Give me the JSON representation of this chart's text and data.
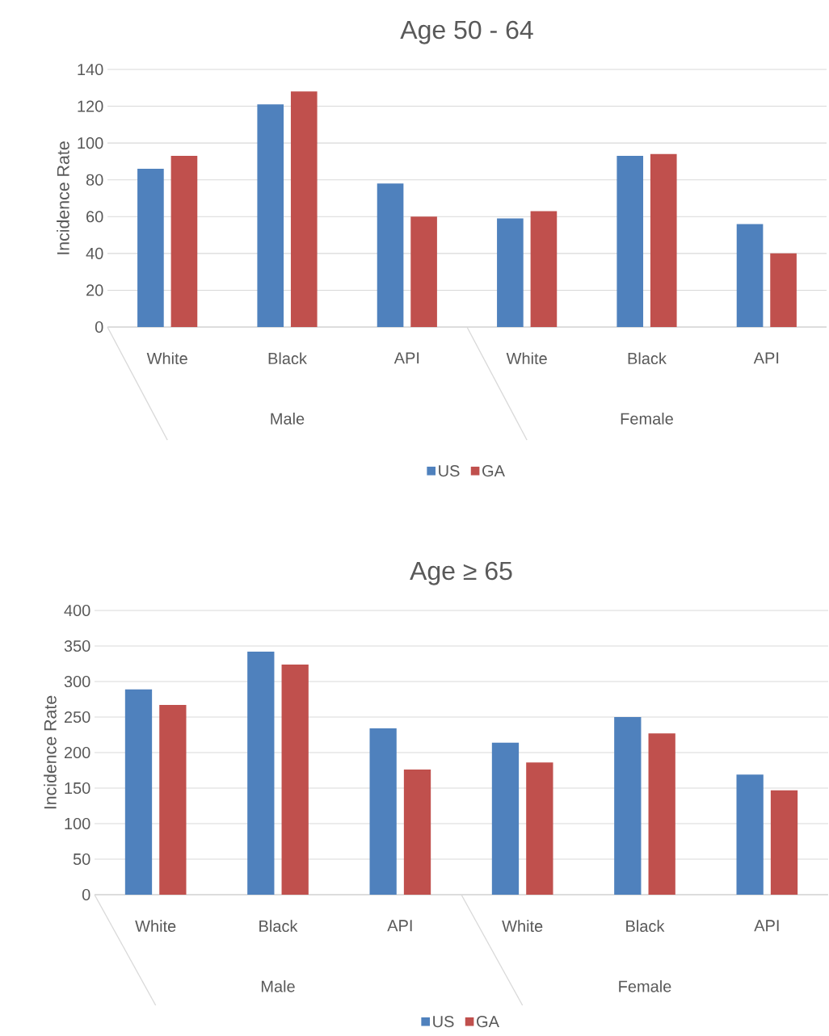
{
  "chart_data": [
    {
      "type": "bar",
      "title": "Age 50 - 64",
      "ylabel": "Incidence Rate",
      "categories": [
        "White",
        "Black",
        "API",
        "White",
        "Black",
        "API"
      ],
      "series": [
        {
          "name": "US",
          "color": "#4f81bd",
          "values": [
            86,
            121,
            78,
            59,
            93,
            56
          ]
        },
        {
          "name": "GA",
          "color": "#c0504d",
          "values": [
            93,
            128,
            60,
            63,
            94,
            40
          ]
        }
      ],
      "ylim": [
        0,
        140
      ],
      "yticks": [
        0,
        20,
        40,
        60,
        80,
        100,
        120,
        140
      ],
      "grid": "y",
      "legend": "bottom",
      "annotations": [
        "Male",
        "Female"
      ]
    },
    {
      "type": "bar",
      "title": "Age ≥ 65",
      "ylabel": "Incidence Rate",
      "categories": [
        "White",
        "Black",
        "API",
        "White",
        "Black",
        "API"
      ],
      "series": [
        {
          "name": "US",
          "color": "#4f81bd",
          "values": [
            289,
            342,
            234,
            214,
            250,
            169
          ]
        },
        {
          "name": "GA",
          "color": "#c0504d",
          "values": [
            267,
            324,
            176,
            186,
            227,
            147
          ]
        }
      ],
      "ylim": [
        0,
        400
      ],
      "yticks": [
        0,
        50,
        100,
        150,
        200,
        250,
        300,
        350,
        400
      ],
      "grid": "y",
      "legend": "bottom",
      "annotations": [
        "Male",
        "Female"
      ]
    }
  ]
}
